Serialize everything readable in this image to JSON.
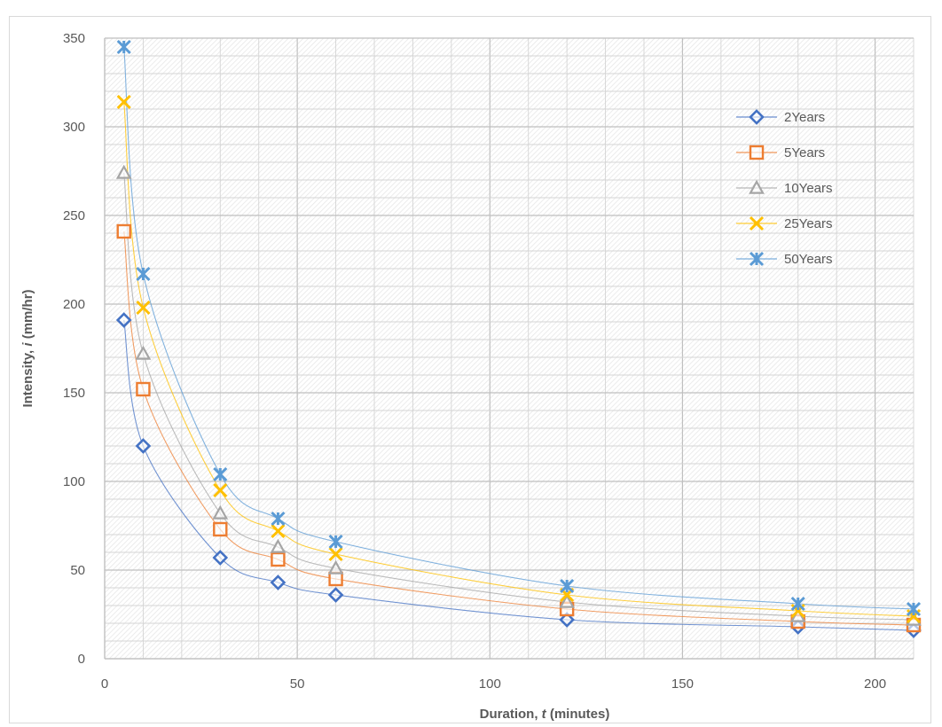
{
  "chart_data": {
    "type": "scatter",
    "title": "",
    "xlabel_prefix": "Duration, ",
    "xlabel_var": "t",
    "xlabel_suffix": " (minutes)",
    "ylabel_prefix": "Intensity, ",
    "ylabel_var": "i",
    "ylabel_suffix": " (mm/hr)",
    "xlim": [
      0,
      210
    ],
    "ylim": [
      0,
      350
    ],
    "xticks": [
      0,
      50,
      100,
      150,
      200
    ],
    "yticks": [
      0,
      50,
      100,
      150,
      200,
      250,
      300,
      350
    ],
    "grid": true,
    "legend_position": "top-right",
    "x": [
      5,
      10,
      30,
      45,
      60,
      120,
      180,
      210
    ],
    "series": [
      {
        "name": "2Years",
        "marker": "diamond",
        "color": "#4472c4",
        "values": [
          191,
          120,
          57,
          43,
          36,
          22,
          18,
          16
        ]
      },
      {
        "name": "5Years",
        "marker": "square",
        "color": "#ed7d31",
        "values": [
          241,
          152,
          73,
          56,
          45,
          28,
          21,
          19
        ]
      },
      {
        "name": "10Years",
        "marker": "triangle",
        "color": "#a5a5a5",
        "values": [
          274,
          172,
          82,
          63,
          51,
          32,
          24,
          22
        ]
      },
      {
        "name": "25Years",
        "marker": "x",
        "color": "#ffc000",
        "values": [
          314,
          198,
          95,
          72,
          59,
          36,
          27,
          24
        ]
      },
      {
        "name": "50Years",
        "marker": "star",
        "color": "#5b9bd5",
        "values": [
          345,
          217,
          104,
          79,
          66,
          41,
          31,
          28
        ]
      }
    ]
  }
}
